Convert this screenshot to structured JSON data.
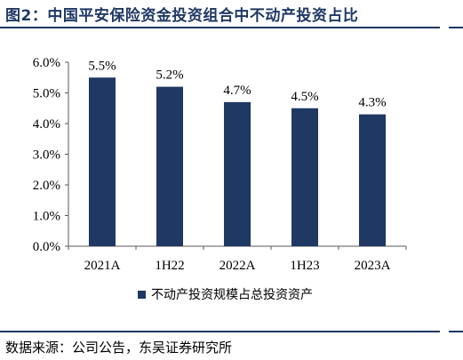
{
  "header": {
    "figure_title": "图2：中国平安保险资金投资组合中不动产投资占比"
  },
  "footer": {
    "source": "数据来源：公司公告，东吴证券研究所"
  },
  "colors": {
    "bar": "#1f3864",
    "rule": "#1f3864",
    "axis": "#595959"
  },
  "chart_data": {
    "type": "bar",
    "categories": [
      "2021A",
      "1H22",
      "2022A",
      "1H23",
      "2023A"
    ],
    "series": [
      {
        "name": "不动产投资规模占总投资资产",
        "values": [
          5.5,
          5.2,
          4.7,
          4.5,
          4.3
        ],
        "labels": [
          "5.5%",
          "5.2%",
          "4.7%",
          "4.5%",
          "4.3%"
        ]
      }
    ],
    "ylim": [
      0,
      6
    ],
    "yticks": [
      "0.0%",
      "1.0%",
      "2.0%",
      "3.0%",
      "4.0%",
      "5.0%",
      "6.0%"
    ],
    "grid": false,
    "legend": "bottom"
  }
}
